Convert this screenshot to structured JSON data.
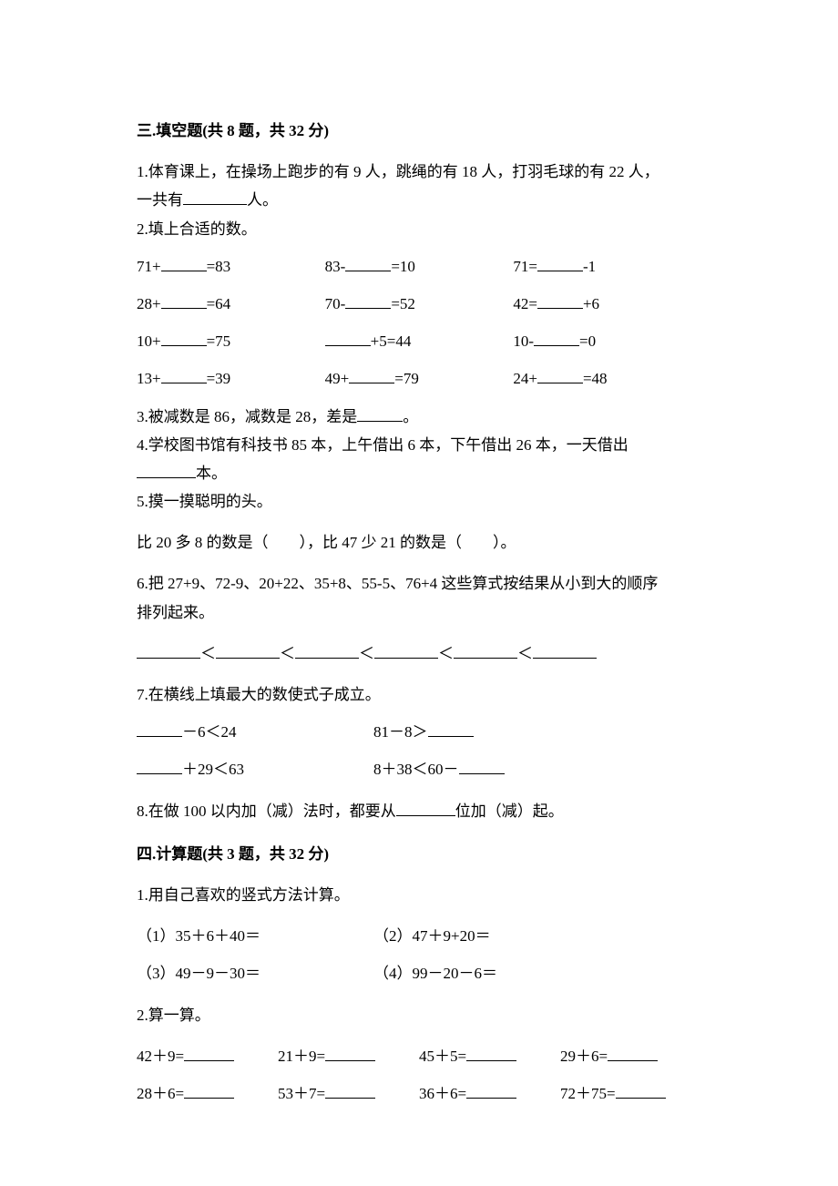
{
  "section3": {
    "title": "三.填空题(共 8 题，共 32 分)",
    "q1_a": "1.体育课上，在操场上跑步的有 9 人，跳绳的有 18 人，打羽毛球的有 22 人，",
    "q1_b": "一共有",
    "q1_c": "人。",
    "q2": "2.填上合适的数。",
    "grid": [
      [
        "71+",
        "=83",
        "83-",
        "=10",
        "71=",
        "-1"
      ],
      [
        "28+",
        "=64",
        "70-",
        "=52",
        "42=",
        "+6"
      ],
      [
        "10+",
        "=75",
        "",
        "+5=44",
        "10-",
        "=0"
      ],
      [
        "13+",
        "=39",
        "49+",
        "=79",
        "24+",
        "=48"
      ]
    ],
    "q3_a": "3.被减数是 86，减数是 28，差是",
    "q3_b": "。",
    "q4_a": "4.学校图书馆有科技书 85 本，上午借出 6 本，下午借出 26 本，一天借出",
    "q4_b": "本。",
    "q5": "5.摸一摸聪明的头。",
    "q5_line": "比 20 多 8 的数是（　　），比 47 少 21 的数是（　　）。",
    "q6_a": "6.把 27+9、72-9、20+22、35+8、55-5、76+4 这些算式按结果从小到大的顺序",
    "q6_b": "排列起来。",
    "lt": "＜",
    "q7": "7.在横线上填最大的数使式子成立。",
    "q7r1c1_a": "－6＜24",
    "q7r1c2_a": "81－8＞",
    "q7r2c1_a": "＋29＜63",
    "q7r2c2_a": "8＋38＜60－",
    "q8_a": "8.在做 100 以内加（减）法时，都要从",
    "q8_b": "位加（减）起。"
  },
  "section4": {
    "title": "四.计算题(共 3 题，共 32 分)",
    "q1": "1.用自己喜欢的竖式方法计算。",
    "r1c1": "（1）35＋6＋40＝",
    "r1c2": "（2）47＋9+20＝",
    "r2c1": "（3）49－9－30＝",
    "r2c2": "（4）99－20－6＝",
    "q2": "2.算一算。",
    "row2_1": [
      "42＋9=",
      "21＋9=",
      "45＋5=",
      "29＋6="
    ],
    "row2_2": [
      "28＋6=",
      "53＋7=",
      "36＋6=",
      "72＋75="
    ]
  }
}
